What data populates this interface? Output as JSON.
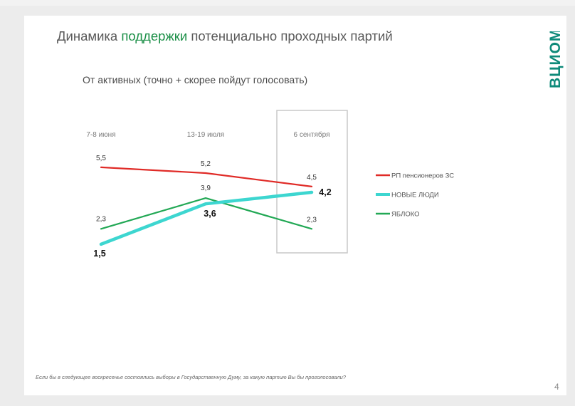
{
  "slide": {
    "title_pre": "Динамика ",
    "title_highlight": "поддержки",
    "title_post": " потенциально проходных партий",
    "subtitle": "От активных (точно + скорее пойдут голосовать)",
    "logo_text": "ВЦИОМ",
    "footnote": "Если бы в следующее воскресенье состоялись выборы в Государственную Думу, за какую партию Вы бы проголосовали?",
    "page_number": "4",
    "colors": {
      "accent_green": "#1b8f47",
      "logo_teal": "#0e8a7a"
    }
  },
  "chart_data": {
    "type": "line",
    "categories": [
      "7-8 июня",
      "13-19 июля",
      "6 сентября"
    ],
    "highlighted_category": "6 сентября",
    "series": [
      {
        "name": "РП пенсионеров ЗС",
        "color": "#e02b27",
        "values": [
          5.5,
          5.2,
          4.5
        ],
        "labels": [
          "5,5",
          "5,2",
          "4,5"
        ]
      },
      {
        "name": "НОВЫЕ ЛЮДИ",
        "color": "#3dd6d0",
        "values": [
          1.5,
          3.6,
          4.2
        ],
        "labels": [
          "1,5",
          "3,6",
          "4,2"
        ]
      },
      {
        "name": "ЯБЛОКО",
        "color": "#22a855",
        "values": [
          2.3,
          3.9,
          2.3
        ],
        "labels": [
          "2,3",
          "3,9",
          "2,3"
        ]
      }
    ],
    "legend_position": "right"
  }
}
